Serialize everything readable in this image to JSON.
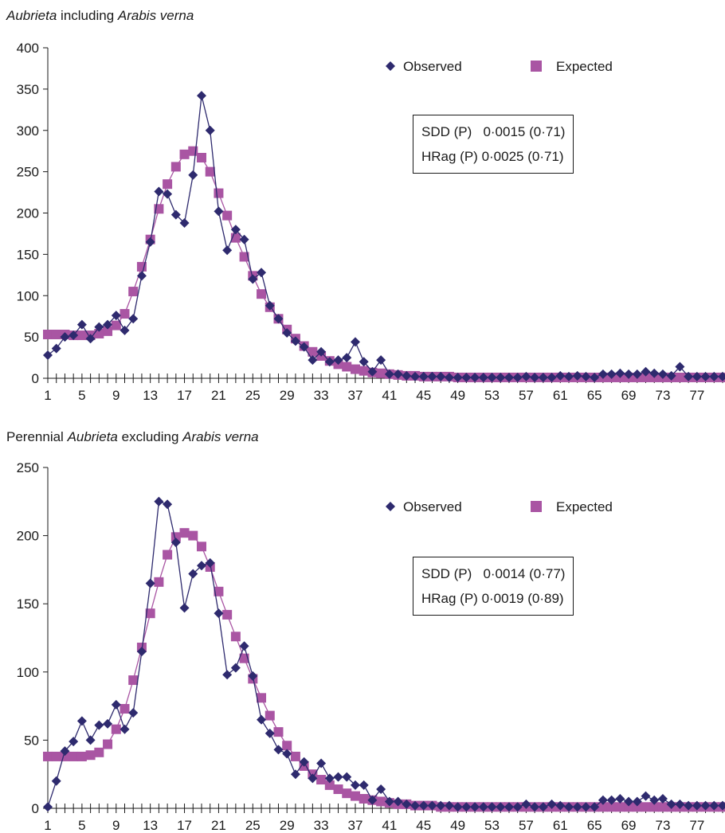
{
  "colors": {
    "observed": "#2e2a6e",
    "expected": "#a955a3",
    "axis": "#1a1a1a",
    "text": "#1a1a1a"
  },
  "chart_data": [
    {
      "type": "line",
      "title_parts": [
        {
          "text": "Aubrieta",
          "italic": true
        },
        {
          "text": " including ",
          "italic": false
        },
        {
          "text": "Arabis verna",
          "italic": true
        }
      ],
      "ylim": [
        0,
        400
      ],
      "yticks": [
        0,
        50,
        100,
        150,
        200,
        250,
        300,
        350,
        400
      ],
      "xlim": [
        1,
        80
      ],
      "xtick_labels": [
        1,
        5,
        9,
        13,
        17,
        21,
        25,
        29,
        33,
        37,
        41,
        45,
        49,
        53,
        57,
        61,
        65,
        69,
        73,
        77
      ],
      "legend": {
        "placement": "top-right",
        "observed_label": "Observed",
        "expected_label": "Expected"
      },
      "stats": [
        "SDD (P)   0·0015 (0·71)",
        "HRag (P) 0·0025 (0·71)"
      ],
      "series": [
        {
          "name": "Observed",
          "marker": "diamond",
          "values": [
            28,
            36,
            50,
            52,
            65,
            48,
            62,
            65,
            76,
            58,
            72,
            124,
            165,
            226,
            223,
            198,
            188,
            246,
            342,
            300,
            202,
            155,
            180,
            168,
            120,
            128,
            88,
            72,
            55,
            45,
            38,
            22,
            32,
            20,
            22,
            25,
            44,
            20,
            8,
            22,
            5,
            5,
            3,
            2,
            2,
            2,
            2,
            1,
            1,
            1,
            1,
            1,
            1,
            1,
            1,
            1,
            2,
            1,
            1,
            1,
            3,
            2,
            3,
            2,
            1,
            5,
            5,
            6,
            5,
            5,
            8,
            6,
            5,
            3,
            14,
            2,
            2,
            2,
            2,
            2
          ]
        },
        {
          "name": "Expected",
          "marker": "square",
          "values": [
            53,
            53,
            53,
            52,
            52,
            52,
            54,
            57,
            64,
            78,
            105,
            135,
            168,
            205,
            235,
            256,
            271,
            275,
            267,
            250,
            224,
            197,
            170,
            147,
            124,
            102,
            86,
            72,
            59,
            48,
            39,
            32,
            27,
            21,
            17,
            14,
            11,
            9,
            7,
            6,
            5,
            4,
            3,
            3,
            2,
            2,
            2,
            2,
            1,
            1,
            1,
            1,
            1,
            1,
            1,
            1,
            1,
            1,
            1,
            1,
            1,
            1,
            1,
            1,
            1,
            1,
            1,
            1,
            1,
            1,
            1,
            1,
            1,
            1,
            1,
            1,
            1,
            1,
            1,
            1
          ]
        }
      ]
    },
    {
      "type": "line",
      "title_parts": [
        {
          "text": "Perennial ",
          "italic": false
        },
        {
          "text": "Aubrieta",
          "italic": true
        },
        {
          "text": " excluding ",
          "italic": false
        },
        {
          "text": "Arabis verna",
          "italic": true
        }
      ],
      "ylim": [
        0,
        250
      ],
      "yticks": [
        0,
        50,
        100,
        150,
        200,
        250
      ],
      "xlim": [
        1,
        80
      ],
      "xtick_labels": [
        1,
        5,
        9,
        13,
        17,
        21,
        25,
        29,
        33,
        37,
        41,
        45,
        49,
        53,
        57,
        61,
        65,
        69,
        73,
        77
      ],
      "legend": {
        "placement": "top-right",
        "observed_label": "Observed",
        "expected_label": "Expected"
      },
      "stats": [
        "SDD (P)   0·0014 (0·77)",
        "HRag (P) 0·0019 (0·89)"
      ],
      "series": [
        {
          "name": "Observed",
          "marker": "diamond",
          "values": [
            1,
            20,
            42,
            49,
            64,
            50,
            61,
            62,
            76,
            58,
            70,
            115,
            165,
            225,
            223,
            195,
            147,
            172,
            178,
            180,
            143,
            98,
            103,
            119,
            97,
            65,
            55,
            43,
            40,
            25,
            34,
            22,
            33,
            22,
            23,
            23,
            17,
            17,
            6,
            14,
            5,
            5,
            3,
            2,
            2,
            2,
            2,
            2,
            1,
            1,
            1,
            1,
            1,
            1,
            1,
            1,
            3,
            1,
            1,
            3,
            2,
            1,
            1,
            1,
            1,
            6,
            6,
            7,
            5,
            5,
            9,
            6,
            7,
            3,
            3,
            2,
            2,
            2,
            2,
            2
          ]
        },
        {
          "name": "Expected",
          "marker": "square",
          "values": [
            38,
            38,
            38,
            38,
            38,
            39,
            41,
            47,
            58,
            73,
            94,
            118,
            143,
            166,
            186,
            199,
            202,
            200,
            192,
            177,
            159,
            142,
            126,
            110,
            95,
            81,
            68,
            56,
            46,
            38,
            31,
            25,
            21,
            17,
            14,
            11,
            9,
            7,
            6,
            5,
            4,
            3,
            3,
            2,
            2,
            2,
            1,
            1,
            1,
            1,
            1,
            1,
            1,
            1,
            1,
            1,
            1,
            1,
            1,
            1,
            1,
            1,
            1,
            1,
            1,
            1,
            1,
            1,
            1,
            1,
            1,
            1,
            1,
            1,
            1,
            1,
            1,
            1,
            1,
            1
          ]
        }
      ]
    }
  ]
}
